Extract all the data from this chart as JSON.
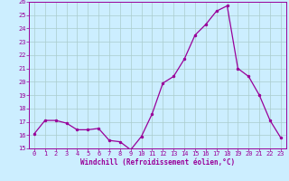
{
  "x": [
    0,
    1,
    2,
    3,
    4,
    5,
    6,
    7,
    8,
    9,
    10,
    11,
    12,
    13,
    14,
    15,
    16,
    17,
    18,
    19,
    20,
    21,
    22,
    23
  ],
  "y": [
    16.1,
    17.1,
    17.1,
    16.9,
    16.4,
    16.4,
    16.5,
    15.6,
    15.5,
    14.9,
    15.9,
    17.6,
    19.9,
    20.4,
    21.7,
    23.5,
    24.3,
    25.3,
    25.7,
    21.0,
    20.4,
    19.0,
    17.1,
    15.8
  ],
  "line_color": "#990099",
  "marker": "o",
  "marker_size": 2.5,
  "bg_color": "#cceeff",
  "grid_color": "#aacccc",
  "xlabel": "Windchill (Refroidissement éolien,°C)",
  "xlabel_color": "#990099",
  "tick_color": "#990099",
  "ylim": [
    15,
    26
  ],
  "xlim": [
    -0.5,
    23.5
  ],
  "yticks": [
    15,
    16,
    17,
    18,
    19,
    20,
    21,
    22,
    23,
    24,
    25,
    26
  ],
  "xticks": [
    0,
    1,
    2,
    3,
    4,
    5,
    6,
    7,
    8,
    9,
    10,
    11,
    12,
    13,
    14,
    15,
    16,
    17,
    18,
    19,
    20,
    21,
    22,
    23
  ],
  "xtick_labels": [
    "0",
    "1",
    "2",
    "3",
    "4",
    "5",
    "6",
    "7",
    "8",
    "9",
    "10",
    "11",
    "12",
    "13",
    "14",
    "15",
    "16",
    "17",
    "18",
    "19",
    "20",
    "21",
    "22",
    "23"
  ]
}
